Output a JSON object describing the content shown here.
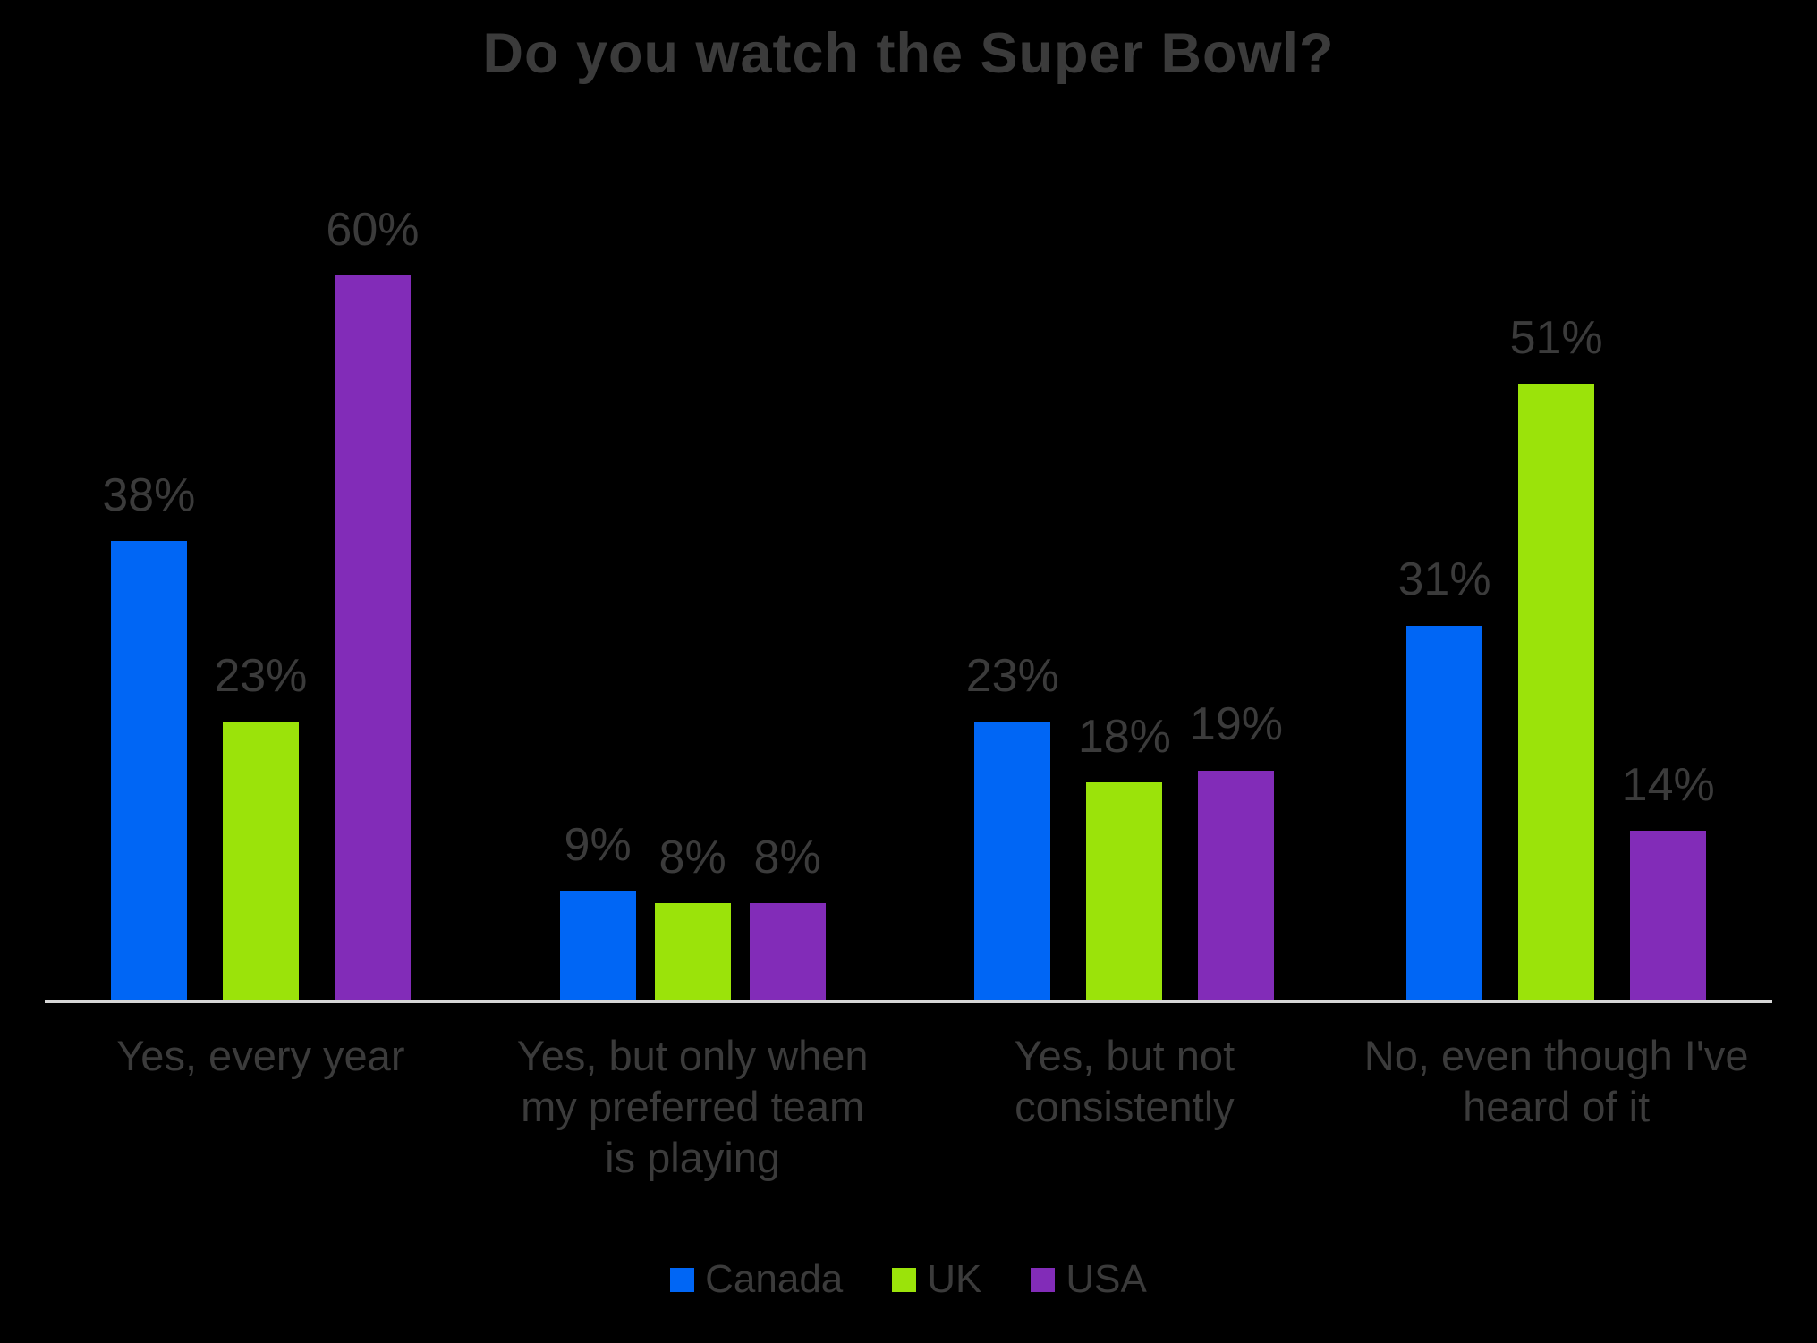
{
  "chart_data": {
    "type": "bar",
    "title": "Do you watch the Super Bowl?",
    "categories": [
      "Yes, every year",
      "Yes, but only when my preferred team is playing",
      "Yes, but not consistently",
      "No, even though I've heard of it"
    ],
    "series": [
      {
        "name": "Canada",
        "color": "#0066F5",
        "values": [
          38,
          9,
          23,
          31
        ]
      },
      {
        "name": "UK",
        "color": "#9BE30A",
        "values": [
          23,
          8,
          18,
          51
        ]
      },
      {
        "name": "USA",
        "color": "#822CB8",
        "values": [
          60,
          8,
          19,
          14
        ]
      }
    ],
    "value_suffix": "%",
    "ylim": [
      0,
      80
    ],
    "grid": false,
    "legend_position": "bottom",
    "style": {
      "background": "#000000",
      "text_color": "#3B3B3B",
      "axis_line_color": "#D6D6D6"
    }
  }
}
